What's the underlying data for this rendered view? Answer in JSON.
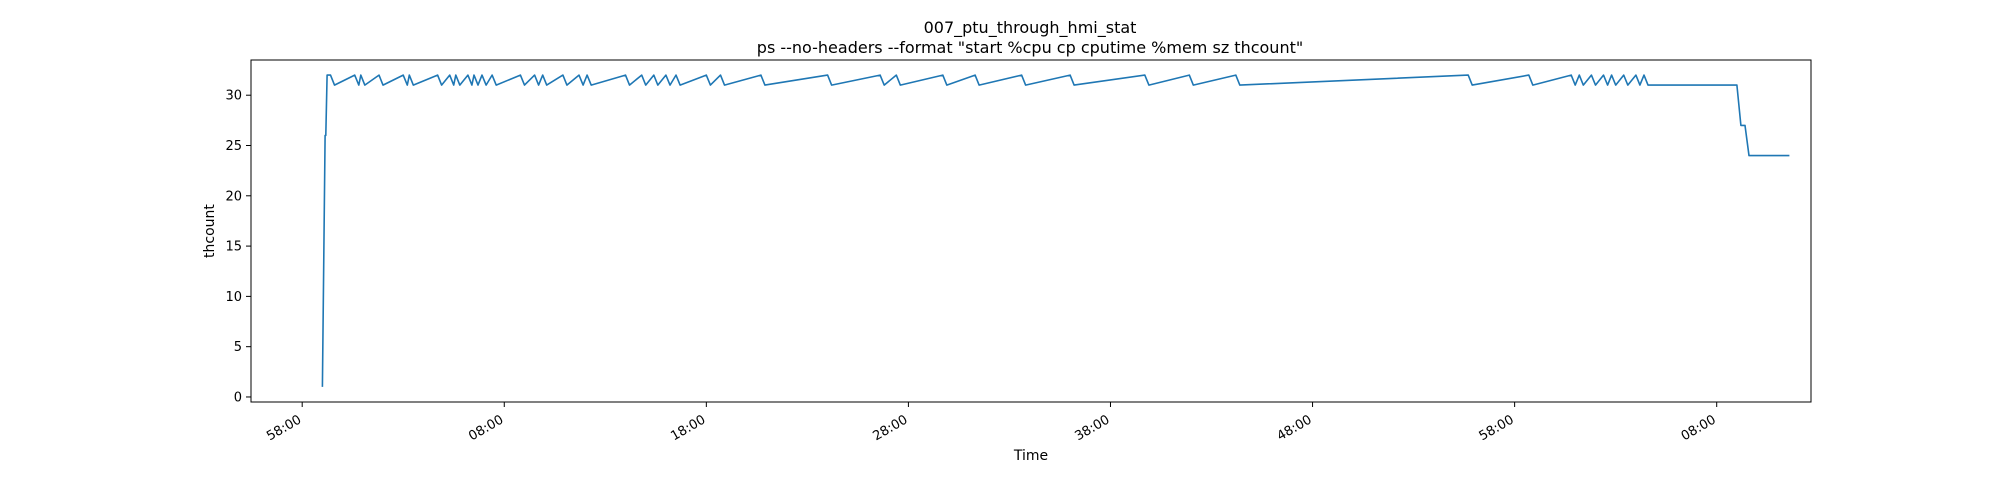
{
  "chart_data": {
    "type": "line",
    "title": "007_ptu_through_hmi_stat",
    "subtitle": "ps --no-headers --format \"start %cpu cp cputime %mem sz thcount\"",
    "xlabel": "Time",
    "ylabel": "thcount",
    "xlim": [
      "2020-01-01T07:55:28",
      "2020-01-01T09:12:40"
    ],
    "ylim": [
      -0.5,
      33.5
    ],
    "x_ticks": [
      {
        "t": "2020-01-01T07:58:00",
        "label": "58:00"
      },
      {
        "t": "2020-01-01T08:08:00",
        "label": "08:00"
      },
      {
        "t": "2020-01-01T08:18:00",
        "label": "18:00"
      },
      {
        "t": "2020-01-01T08:28:00",
        "label": "28:00"
      },
      {
        "t": "2020-01-01T08:38:00",
        "label": "38:00"
      },
      {
        "t": "2020-01-01T08:48:00",
        "label": "48:00"
      },
      {
        "t": "2020-01-01T08:58:00",
        "label": "58:00"
      },
      {
        "t": "2020-01-01T09:08:00",
        "label": "08:00"
      }
    ],
    "y_ticks": [
      0,
      5,
      10,
      15,
      20,
      25,
      30
    ],
    "grid": false,
    "legend": "none",
    "color": "#1f77b4",
    "series": [
      {
        "x": [
          "2020-01-01T07:59:00",
          "2020-01-01T07:59:08",
          "2020-01-01T07:59:10",
          "2020-01-01T07:59:14",
          "2020-01-01T07:59:24",
          "2020-01-01T07:59:36",
          "2020-01-01T08:00:36",
          "2020-01-01T08:00:48",
          "2020-01-01T08:00:54",
          "2020-01-01T08:01:06",
          "2020-01-01T08:01:48",
          "2020-01-01T08:02:00",
          "2020-01-01T08:03:00",
          "2020-01-01T08:03:12",
          "2020-01-01T08:03:18",
          "2020-01-01T08:03:30",
          "2020-01-01T08:04:42",
          "2020-01-01T08:04:54",
          "2020-01-01T08:05:18",
          "2020-01-01T08:05:30",
          "2020-01-01T08:05:36",
          "2020-01-01T08:05:48",
          "2020-01-01T08:06:12",
          "2020-01-01T08:06:24",
          "2020-01-01T08:06:30",
          "2020-01-01T08:06:42",
          "2020-01-01T08:06:54",
          "2020-01-01T08:07:06",
          "2020-01-01T08:07:24",
          "2020-01-01T08:07:36",
          "2020-01-01T08:08:48",
          "2020-01-01T08:09:00",
          "2020-01-01T08:09:30",
          "2020-01-01T08:09:42",
          "2020-01-01T08:09:54",
          "2020-01-01T08:10:06",
          "2020-01-01T08:10:54",
          "2020-01-01T08:11:06",
          "2020-01-01T08:11:42",
          "2020-01-01T08:11:54",
          "2020-01-01T08:12:06",
          "2020-01-01T08:12:18",
          "2020-01-01T08:14:00",
          "2020-01-01T08:14:12",
          "2020-01-01T08:14:48",
          "2020-01-01T08:15:00",
          "2020-01-01T08:15:24",
          "2020-01-01T08:15:36",
          "2020-01-01T08:16:00",
          "2020-01-01T08:16:12",
          "2020-01-01T08:16:30",
          "2020-01-01T08:16:42",
          "2020-01-01T08:18:00",
          "2020-01-01T08:18:12",
          "2020-01-01T08:18:42",
          "2020-01-01T08:18:54",
          "2020-01-01T08:20:42",
          "2020-01-01T08:20:54",
          "2020-01-01T08:24:00",
          "2020-01-01T08:24:12",
          "2020-01-01T08:26:36",
          "2020-01-01T08:26:48",
          "2020-01-01T08:27:24",
          "2020-01-01T08:27:36",
          "2020-01-01T08:29:42",
          "2020-01-01T08:29:54",
          "2020-01-01T08:31:18",
          "2020-01-01T08:31:30",
          "2020-01-01T08:33:36",
          "2020-01-01T08:33:48",
          "2020-01-01T08:36:00",
          "2020-01-01T08:36:12",
          "2020-01-01T08:39:42",
          "2020-01-01T08:39:54",
          "2020-01-01T08:41:54",
          "2020-01-01T08:42:06",
          "2020-01-01T08:44:12",
          "2020-01-01T08:44:24",
          "2020-01-01T08:55:42",
          "2020-01-01T08:55:54",
          "2020-01-01T08:58:42",
          "2020-01-01T08:58:54",
          "2020-01-01T09:00:48",
          "2020-01-01T09:01:00",
          "2020-01-01T09:01:12",
          "2020-01-01T09:01:24",
          "2020-01-01T09:01:48",
          "2020-01-01T09:02:00",
          "2020-01-01T09:02:24",
          "2020-01-01T09:02:36",
          "2020-01-01T09:02:48",
          "2020-01-01T09:03:00",
          "2020-01-01T09:03:24",
          "2020-01-01T09:03:36",
          "2020-01-01T09:04:00",
          "2020-01-01T09:04:12",
          "2020-01-01T09:04:24",
          "2020-01-01T09:04:36",
          "2020-01-01T09:09:00",
          "2020-01-01T09:09:12",
          "2020-01-01T09:09:24",
          "2020-01-01T09:09:36",
          "2020-01-01T09:11:36"
        ],
        "y": [
          1,
          26,
          26,
          32,
          32,
          31,
          32,
          31,
          32,
          31,
          32,
          31,
          32,
          31,
          32,
          31,
          32,
          31,
          32,
          31,
          32,
          31,
          32,
          31,
          32,
          31,
          32,
          31,
          32,
          31,
          32,
          31,
          32,
          31,
          32,
          31,
          32,
          31,
          32,
          31,
          32,
          31,
          32,
          31,
          32,
          31,
          32,
          31,
          32,
          31,
          32,
          31,
          32,
          31,
          32,
          31,
          32,
          31,
          32,
          31,
          32,
          31,
          32,
          31,
          32,
          31,
          32,
          31,
          32,
          31,
          32,
          31,
          32,
          31,
          32,
          31,
          32,
          31,
          32,
          31,
          32,
          31,
          32,
          31,
          32,
          31,
          32,
          31,
          32,
          31,
          32,
          31,
          32,
          31,
          32,
          31,
          32,
          31,
          31,
          27,
          27,
          24,
          24
        ]
      }
    ]
  }
}
